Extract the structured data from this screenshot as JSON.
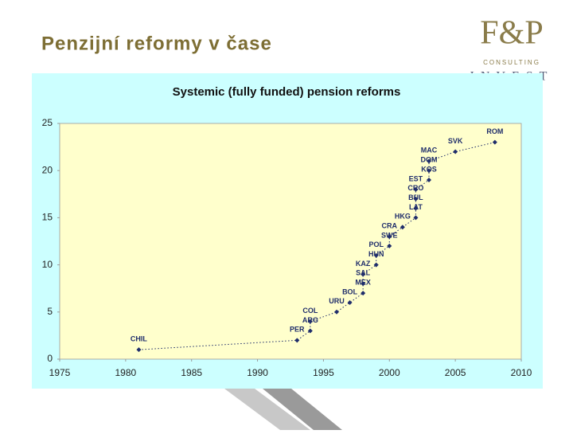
{
  "header": {
    "title": "Penzijní reformy v čase",
    "logo": {
      "mark": "F&P",
      "line1": "CONSULTING",
      "line2": "INVEST"
    }
  },
  "chart_data": {
    "type": "line",
    "title": "Systemic (fully funded) pension reforms",
    "x": [
      1981,
      1993,
      1994,
      1994,
      1996,
      1997,
      1998,
      1998,
      1998,
      1999,
      1999,
      2000,
      2000,
      2001,
      2002,
      2002,
      2002,
      2002,
      2003,
      2003,
      2003,
      2005,
      2008
    ],
    "values": [
      1,
      2,
      3,
      4,
      5,
      6,
      7,
      8,
      9,
      10,
      11,
      12,
      13,
      14,
      15,
      16,
      17,
      18,
      19,
      20,
      21,
      22,
      23
    ],
    "point_labels": [
      "CHIL",
      "PER",
      "ARG",
      "COL",
      "URU",
      "BOL",
      "MEX",
      "SAL",
      "KAZ",
      "HUN",
      "POL",
      "SWE",
      "CRA",
      "HKG",
      "LAT",
      "BUL",
      "CRO",
      "EST",
      "KOS",
      "DOM",
      "MAC",
      "SVK",
      "ROM"
    ],
    "color": "#1f2d6b",
    "xlim": [
      1975,
      2010
    ],
    "xticks": [
      1975,
      1980,
      1985,
      1990,
      1995,
      2000,
      2005,
      2010
    ],
    "ylim": [
      0,
      25
    ],
    "yticks": [
      0,
      5,
      10,
      15,
      20,
      25
    ],
    "grid": false
  }
}
